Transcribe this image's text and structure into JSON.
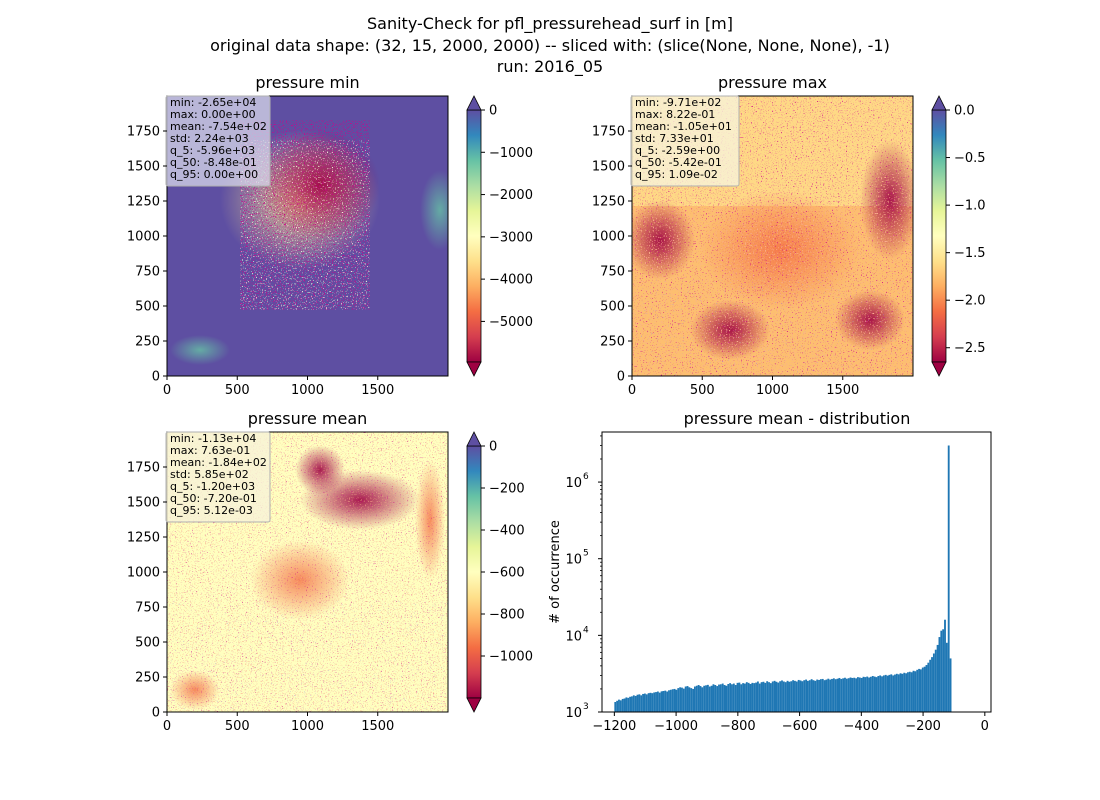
{
  "figure": {
    "suptitle_lines": [
      "Sanity-Check for pfl_pressurehead_surf in [m]",
      "original data shape: (32, 15, 2000, 2000) -- sliced with: (slice(None, None, None), -1)",
      "run: 2016_05"
    ]
  },
  "colors": {
    "spectral": [
      "#9e0142",
      "#d53e4f",
      "#f46d43",
      "#fdae61",
      "#fee08b",
      "#ffffbf",
      "#e6f598",
      "#abdda4",
      "#66c2a5",
      "#3288bd",
      "#5e4fa2"
    ],
    "hist_bar": "#1f77b4"
  },
  "chart_data": [
    {
      "type": "heatmap",
      "title": "pressure min",
      "x_ticks": [
        "0",
        "500",
        "1000",
        "1500"
      ],
      "y_ticks": [
        "0",
        "250",
        "500",
        "750",
        "1000",
        "1250",
        "1500",
        "1750"
      ],
      "xlim": [
        0,
        2000
      ],
      "ylim": [
        0,
        2000
      ],
      "colorbar": {
        "ticks": [
          "0",
          "−1000",
          "−2000",
          "−3000",
          "−4000",
          "−5000"
        ],
        "vmin": -5960,
        "vmax": 0,
        "extend": "both"
      },
      "stats": [
        "min: -2.65e+04",
        "max: 0.00e+00",
        "mean: -7.54e+02",
        "std: 2.24e+03",
        "q_5: -5.96e+03",
        "q_50: -8.48e-01",
        "q_95: 0.00e+00"
      ]
    },
    {
      "type": "heatmap",
      "title": "pressure max",
      "x_ticks": [
        "0",
        "500",
        "1000",
        "1500"
      ],
      "y_ticks": [
        "0",
        "250",
        "500",
        "750",
        "1000",
        "1250",
        "1500",
        "1750"
      ],
      "xlim": [
        0,
        2000
      ],
      "ylim": [
        0,
        2000
      ],
      "colorbar": {
        "ticks": [
          "0.0",
          "−0.5",
          "−1.0",
          "−1.5",
          "−2.0",
          "−2.5"
        ],
        "vmin": -2.65,
        "vmax": 0.0,
        "extend": "both"
      },
      "stats": [
        "min: -9.71e+02",
        "max: 8.22e-01",
        "mean: -1.05e+01",
        "std: 7.33e+01",
        "q_5: -2.59e+00",
        "q_50: -5.42e-01",
        "q_95: 1.09e-02"
      ]
    },
    {
      "type": "heatmap",
      "title": "pressure mean",
      "x_ticks": [
        "0",
        "500",
        "1000",
        "1500"
      ],
      "y_ticks": [
        "0",
        "250",
        "500",
        "750",
        "1000",
        "1250",
        "1500",
        "1750"
      ],
      "xlim": [
        0,
        2000
      ],
      "ylim": [
        0,
        2000
      ],
      "colorbar": {
        "ticks": [
          "0",
          "−200",
          "−400",
          "−600",
          "−800",
          "−1000"
        ],
        "vmin": -1200,
        "vmax": 0,
        "extend": "both"
      },
      "stats": [
        "min: -1.13e+04",
        "max: 7.63e-01",
        "mean: -1.84e+02",
        "std: 5.85e+02",
        "q_5: -1.20e+03",
        "q_50: -7.20e-01",
        "q_95: 5.12e-03"
      ]
    },
    {
      "type": "bar",
      "title": "pressure mean - distribution",
      "ylabel": "# of occurrence",
      "yscale": "log",
      "ylim": [
        1000,
        4500000
      ],
      "xlim": [
        -1240,
        20
      ],
      "x_ticks": [
        "−1200",
        "−1000",
        "−800",
        "−600",
        "−400",
        "−200",
        "0"
      ],
      "y_ticks": [
        "10^3",
        "10^4",
        "10^5",
        "10^6"
      ],
      "bin_start": -1200,
      "bin_width": 6,
      "counts": [
        1350,
        1400,
        1450,
        1420,
        1480,
        1500,
        1550,
        1530,
        1580,
        1600,
        1650,
        1620,
        1680,
        1700,
        1650,
        1720,
        1740,
        1700,
        1760,
        1780,
        1760,
        1800,
        1820,
        1850,
        1790,
        1860,
        1880,
        1900,
        1850,
        1920,
        1950,
        1980,
        2000,
        1950,
        2050,
        2100,
        2080,
        2020,
        2150,
        2180,
        2100,
        2050,
        2000,
        2150,
        2200,
        2250,
        2180,
        2100,
        2200,
        2230,
        2260,
        2150,
        2200,
        2300,
        2250,
        2180,
        2280,
        2300,
        2350,
        2250,
        2200,
        2320,
        2380,
        2300,
        2350,
        2250,
        2400,
        2420,
        2300,
        2380,
        2350,
        2450,
        2400,
        2320,
        2400,
        2380,
        2420,
        2500,
        2350,
        2450,
        2480,
        2400,
        2520,
        2450,
        2380,
        2500,
        2550,
        2480,
        2420,
        2520,
        2580,
        2500,
        2450,
        2550,
        2480,
        2520,
        2600,
        2550,
        2500,
        2620,
        2580,
        2520,
        2600,
        2650,
        2550,
        2600,
        2680,
        2600,
        2550,
        2650,
        2620,
        2680,
        2700,
        2600,
        2650,
        2720,
        2650,
        2700,
        2750,
        2680,
        2720,
        2780,
        2700,
        2750,
        2800,
        2720,
        2760,
        2820,
        2780,
        2800,
        2750,
        2850,
        2820,
        2780,
        2880,
        2850,
        2900,
        2820,
        2880,
        2950,
        2900,
        2850,
        2950,
        3000,
        2920,
        3000,
        3050,
        2980,
        3050,
        3100,
        3000,
        3080,
        3150,
        3100,
        3200,
        3150,
        3250,
        3200,
        3300,
        3350,
        3300,
        3450,
        3400,
        3550,
        3650,
        3600,
        3800,
        3900,
        4100,
        4400,
        4800,
        5200,
        5800,
        6500,
        7500,
        9500,
        11500,
        12000,
        16000,
        8000,
        3000000,
        5000
      ]
    }
  ]
}
